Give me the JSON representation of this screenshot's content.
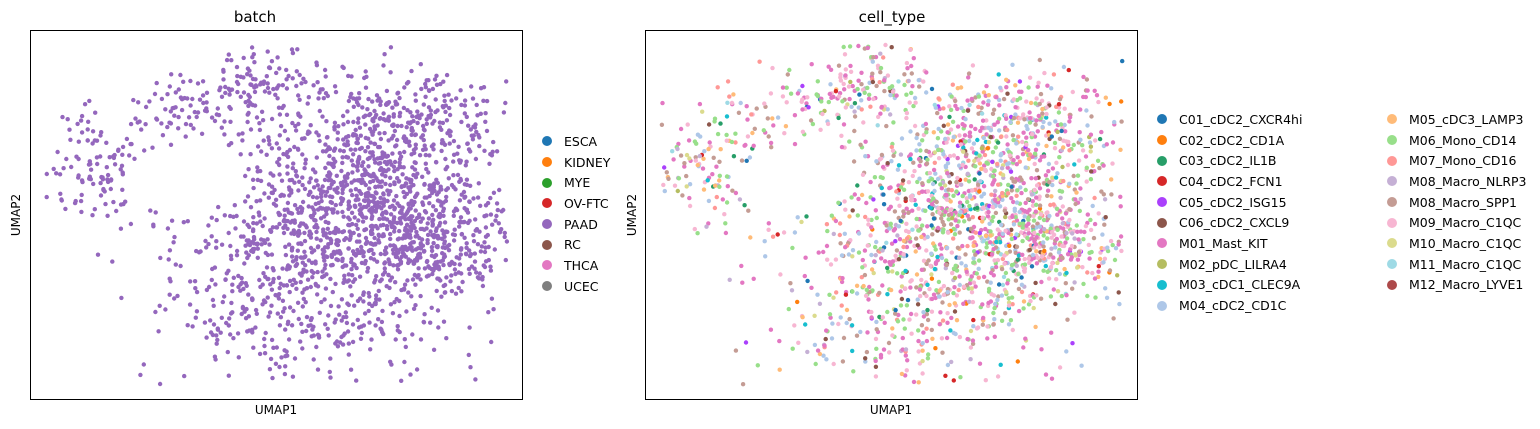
{
  "chart_data": [
    {
      "type": "scatter",
      "title": "batch",
      "xlabel": "UMAP1",
      "ylabel": "UMAP2",
      "grid": false,
      "legend_position": "right",
      "categories": [
        "ESCA",
        "KIDNEY",
        "MYE",
        "OV-FTC",
        "PAAD",
        "RC",
        "THCA",
        "UCEC"
      ],
      "colors": [
        "#1f77b4",
        "#ff7f0e",
        "#2ca02c",
        "#d62728",
        "#9467bd",
        "#8c564b",
        "#e377c2",
        "#7f7f7f"
      ],
      "visible_category": "PAAD",
      "point_color": "#9467bd",
      "approx_point_count": 2200
    },
    {
      "type": "scatter",
      "title": "cell_type",
      "xlabel": "UMAP1",
      "ylabel": "UMAP2",
      "grid": false,
      "legend_position": "right",
      "categories": [
        "C01_cDC2_CXCR4hi",
        "C02_cDC2_CD1A",
        "C03_cDC2_IL1B",
        "C04_cDC2_FCN1",
        "C05_cDC2_ISG15",
        "C06_cDC2_CXCL9",
        "M01_Mast_KIT",
        "M02_pDC_LILRA4",
        "M03_cDC1_CLEC9A",
        "M04_cDC2_CD1C",
        "M05_cDC3_LAMP3",
        "M06_Mono_CD14",
        "M07_Mono_CD16",
        "M08_Macro_NLRP3",
        "M08_Macro_SPP1",
        "M09_Macro_C1QC",
        "M10_Macro_C1QC",
        "M11_Macro_C1QC",
        "M12_Macro_LYVE1"
      ],
      "colors": [
        "#1f77b4",
        "#ff7f0e",
        "#279e68",
        "#d62728",
        "#aa40fc",
        "#8c564b",
        "#e377c2",
        "#b5bd61",
        "#17becf",
        "#aec7e8",
        "#ffbb78",
        "#98df8a",
        "#ff9896",
        "#c5b0d5",
        "#c49c94",
        "#f7b6d2",
        "#dbdb8d",
        "#9edae5",
        "#ad494a"
      ],
      "approx_point_count": 2200
    }
  ]
}
